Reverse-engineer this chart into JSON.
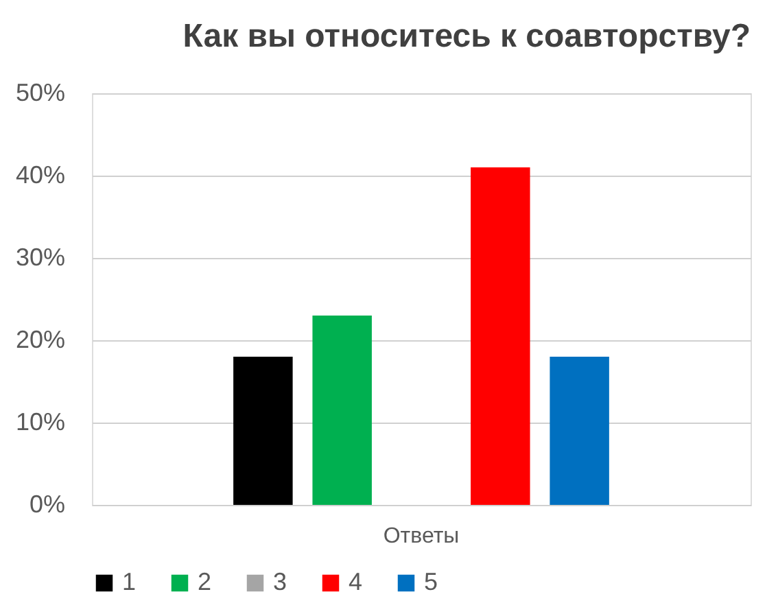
{
  "chart_data": {
    "type": "bar",
    "title": "Как вы относитесь к соавторству?",
    "categories": [
      "Ответы"
    ],
    "series": [
      {
        "name": "1",
        "color": "#000000",
        "values": [
          18
        ]
      },
      {
        "name": "2",
        "color": "#00b050",
        "values": [
          23
        ]
      },
      {
        "name": "3",
        "color": "#a5a5a5",
        "values": [
          0
        ]
      },
      {
        "name": "4",
        "color": "#ff0000",
        "values": [
          41
        ]
      },
      {
        "name": "5",
        "color": "#0070c0",
        "values": [
          18
        ]
      }
    ],
    "ylim": [
      0,
      50
    ],
    "yticks": [
      {
        "value": 0,
        "label": "0%"
      },
      {
        "value": 10,
        "label": "10%"
      },
      {
        "value": 20,
        "label": "20%"
      },
      {
        "value": 30,
        "label": "30%"
      },
      {
        "value": 40,
        "label": "40%"
      },
      {
        "value": 50,
        "label": "50%"
      }
    ],
    "grid": "y",
    "legend": "bottom"
  }
}
